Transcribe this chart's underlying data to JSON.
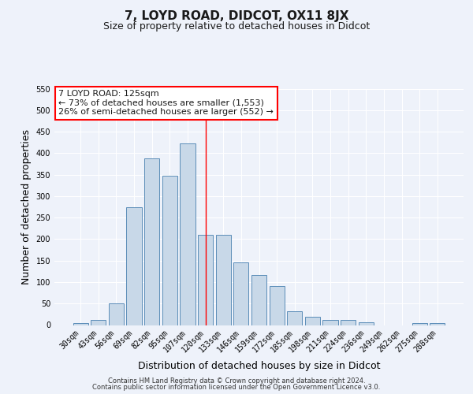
{
  "title": "7, LOYD ROAD, DIDCOT, OX11 8JX",
  "subtitle": "Size of property relative to detached houses in Didcot",
  "xlabel": "Distribution of detached houses by size in Didcot",
  "ylabel": "Number of detached properties",
  "categories": [
    "30sqm",
    "43sqm",
    "56sqm",
    "69sqm",
    "82sqm",
    "95sqm",
    "107sqm",
    "120sqm",
    "133sqm",
    "146sqm",
    "159sqm",
    "172sqm",
    "185sqm",
    "198sqm",
    "211sqm",
    "224sqm",
    "236sqm",
    "249sqm",
    "262sqm",
    "275sqm",
    "288sqm"
  ],
  "values": [
    5,
    12,
    50,
    275,
    388,
    348,
    422,
    210,
    210,
    145,
    116,
    90,
    32,
    20,
    12,
    12,
    6,
    0,
    0,
    5,
    5
  ],
  "bar_color": "#c8d8e8",
  "bar_edge_color": "#5b8db8",
  "background_color": "#eef2fa",
  "grid_color": "#ffffff",
  "ylim": [
    0,
    550
  ],
  "yticks": [
    0,
    50,
    100,
    150,
    200,
    250,
    300,
    350,
    400,
    450,
    500,
    550
  ],
  "property_label": "7 LOYD ROAD: 125sqm",
  "annotation_line1": "← 73% of detached houses are smaller (1,553)",
  "annotation_line2": "26% of semi-detached houses are larger (552) →",
  "vline_x_index": 7.5,
  "footer_line1": "Contains HM Land Registry data © Crown copyright and database right 2024.",
  "footer_line2": "Contains public sector information licensed under the Open Government Licence v3.0.",
  "title_fontsize": 11,
  "subtitle_fontsize": 9,
  "axis_label_fontsize": 9,
  "tick_fontsize": 7,
  "annotation_fontsize": 8,
  "footer_fontsize": 6
}
